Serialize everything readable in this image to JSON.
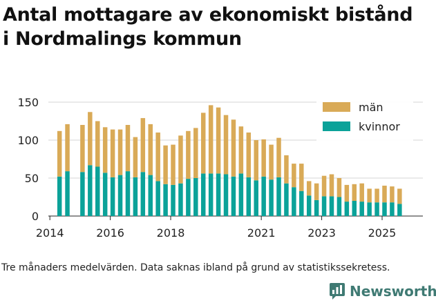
{
  "header": {
    "title_line1": "Antal mottagare av ekonomiskt bistånd",
    "title_line2": "i Nordmalings kommun"
  },
  "footer": {
    "note": "Tre månaders medelvärden. Data saknas ibland på grund av statistikssekretess.",
    "brand": "Newsworthy"
  },
  "colors": {
    "men": "#d9aa57",
    "women": "#0ba299",
    "brand": "#3f7a73"
  },
  "chart_data": {
    "type": "bar",
    "stacked": true,
    "title": "Antal mottagare av ekonomiskt bistånd i Nordmalings kommun",
    "ylim": [
      0,
      150
    ],
    "xlim": [
      2013.95,
      2026.35
    ],
    "yticks": [
      0,
      50,
      100,
      150
    ],
    "xticks": [
      "2014",
      "2016",
      "2018",
      "2021",
      "2023",
      "2025"
    ],
    "xtick_values": [
      2014.0,
      2016.0,
      2018.0,
      2021.0,
      2023.0,
      2025.0
    ],
    "legend": {
      "position": "top-right",
      "entries": [
        "män",
        "kvinnor"
      ]
    },
    "series": [
      {
        "name": "kvinnor",
        "values": [
          52,
          59,
          58,
          67,
          65,
          57,
          51,
          54,
          59,
          51,
          58,
          54,
          46,
          42,
          41,
          43,
          49,
          50,
          56,
          56,
          56,
          55,
          52,
          56,
          51,
          47,
          52,
          48,
          51,
          43,
          38,
          33,
          27,
          21,
          26,
          26,
          25,
          19,
          20,
          19,
          18,
          18,
          18,
          18,
          16
        ]
      },
      {
        "name": "män",
        "values": [
          60,
          62,
          62,
          70,
          60,
          60,
          63,
          60,
          61,
          53,
          71,
          67,
          64,
          51,
          53,
          63,
          63,
          66,
          80,
          90,
          87,
          78,
          75,
          62,
          59,
          53,
          49,
          46,
          52,
          37,
          31,
          36,
          19,
          22,
          27,
          29,
          25,
          22,
          22,
          24,
          18,
          18,
          22,
          21,
          20
        ]
      }
    ],
    "x": [
      2014.32,
      2014.58,
      2015.08,
      2015.33,
      2015.58,
      2015.83,
      2016.08,
      2016.33,
      2016.58,
      2016.83,
      2017.08,
      2017.33,
      2017.58,
      2017.83,
      2018.08,
      2018.33,
      2018.58,
      2018.83,
      2019.08,
      2019.33,
      2019.58,
      2019.83,
      2020.08,
      2020.33,
      2020.58,
      2020.83,
      2021.08,
      2021.33,
      2021.58,
      2021.83,
      2022.08,
      2022.33,
      2022.58,
      2022.83,
      2023.08,
      2023.33,
      2023.58,
      2023.83,
      2024.08,
      2024.33,
      2024.58,
      2024.83,
      2025.08,
      2025.33,
      2025.58
    ]
  }
}
